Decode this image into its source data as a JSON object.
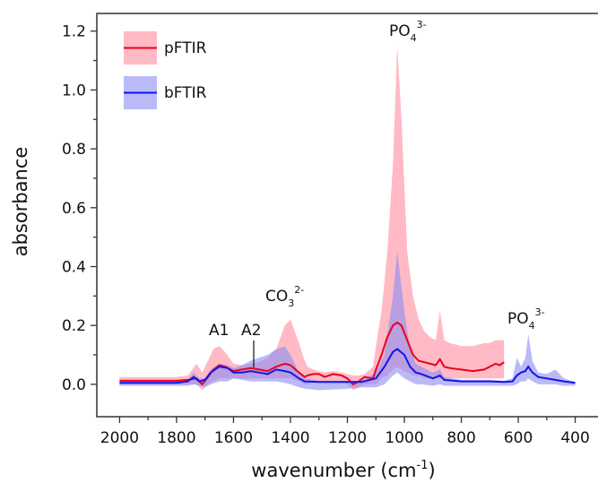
{
  "chart_data": {
    "type": "line",
    "y_label": "absorbance",
    "x_label_parts": [
      "wavenumber (cm",
      "-1",
      ")"
    ],
    "xlim": [
      2080,
      320
    ],
    "ylim": [
      -0.11,
      1.26
    ],
    "xticks": [
      2000,
      1800,
      1600,
      1400,
      1200,
      1000,
      800,
      600,
      400
    ],
    "x_minor_ticks": [
      1900,
      1700,
      1500,
      1300,
      1100,
      900,
      700,
      500
    ],
    "yticks": [
      {
        "value": 0,
        "label": "0.0"
      },
      0.2,
      0.4,
      0.6,
      0.8,
      {
        "value": 1,
        "label": "1.0"
      },
      1.2
    ],
    "y_minor_ticks": [
      0.1,
      0.3,
      0.5,
      0.7,
      0.9,
      1.1
    ],
    "legend": "upper left",
    "annotations": [
      {
        "text": "A1"
      },
      {
        "text": "A2"
      },
      {
        "text": "CO",
        "sub": "3",
        "sup": "2-"
      },
      {
        "text": "PO",
        "sub": "4",
        "sup": "3-"
      },
      {
        "text": "PO",
        "sub": "4",
        "sup": "3-"
      }
    ],
    "series": [
      {
        "name": "pFTIR",
        "color": "#e8001c",
        "band_color": "#ffb3bf",
        "x": [
          2000,
          1900,
          1800,
          1760,
          1730,
          1710,
          1690,
          1670,
          1650,
          1630,
          1600,
          1570,
          1540,
          1510,
          1480,
          1450,
          1420,
          1400,
          1370,
          1350,
          1340,
          1320,
          1300,
          1280,
          1250,
          1220,
          1200,
          1180,
          1160,
          1140,
          1110,
          1100,
          1080,
          1060,
          1040,
          1025,
          1010,
          990,
          970,
          950,
          930,
          910,
          890,
          875,
          860,
          840,
          800,
          760,
          720,
          700,
          680,
          665,
          650
        ],
        "values": [
          0.012,
          0.012,
          0.012,
          0.015,
          0.02,
          0.0,
          0.025,
          0.05,
          0.065,
          0.06,
          0.045,
          0.05,
          0.055,
          0.05,
          0.045,
          0.06,
          0.07,
          0.065,
          0.04,
          0.025,
          0.03,
          0.035,
          0.035,
          0.025,
          0.035,
          0.03,
          0.02,
          0.0,
          0.01,
          0.025,
          0.02,
          0.05,
          0.1,
          0.16,
          0.2,
          0.21,
          0.2,
          0.15,
          0.1,
          0.08,
          0.075,
          0.07,
          0.065,
          0.085,
          0.06,
          0.055,
          0.05,
          0.045,
          0.05,
          0.06,
          0.07,
          0.065,
          0.075
        ],
        "upper": [
          0.025,
          0.025,
          0.025,
          0.03,
          0.07,
          0.04,
          0.08,
          0.12,
          0.13,
          0.11,
          0.07,
          0.065,
          0.07,
          0.075,
          0.09,
          0.12,
          0.2,
          0.22,
          0.14,
          0.08,
          0.06,
          0.05,
          0.045,
          0.04,
          0.045,
          0.04,
          0.035,
          0.03,
          0.03,
          0.035,
          0.06,
          0.13,
          0.25,
          0.45,
          0.75,
          1.15,
          0.9,
          0.45,
          0.3,
          0.22,
          0.18,
          0.16,
          0.15,
          0.25,
          0.15,
          0.14,
          0.13,
          0.13,
          0.14,
          0.14,
          0.15,
          0.15,
          0.15
        ],
        "lower": [
          0.0,
          0.0,
          0.0,
          0.0,
          0.0,
          -0.02,
          0.0,
          0.01,
          0.02,
          0.02,
          0.02,
          0.02,
          0.02,
          0.02,
          0.02,
          0.02,
          0.02,
          0.02,
          0.01,
          0.0,
          0.0,
          0.01,
          0.01,
          0.01,
          0.01,
          0.01,
          0.0,
          -0.02,
          -0.01,
          0.0,
          0.0,
          0.0,
          0.02,
          0.03,
          0.05,
          0.06,
          0.05,
          0.04,
          0.03,
          0.03,
          0.02,
          0.02,
          0.02,
          0.02,
          0.02,
          0.02,
          0.02,
          0.02,
          0.02,
          0.02,
          0.02,
          0.02,
          0.02
        ]
      },
      {
        "name": "bFTIR",
        "color": "#1414e6",
        "band_color": "#8c8cf5",
        "x": [
          2000,
          1900,
          1800,
          1760,
          1740,
          1720,
          1700,
          1680,
          1650,
          1620,
          1600,
          1570,
          1540,
          1510,
          1480,
          1450,
          1420,
          1400,
          1370,
          1350,
          1300,
          1200,
          1150,
          1100,
          1070,
          1040,
          1025,
          1000,
          980,
          960,
          940,
          900,
          875,
          860,
          800,
          700,
          650,
          620,
          605,
          590,
          575,
          565,
          550,
          530,
          500,
          470,
          440,
          400
        ],
        "values": [
          0.005,
          0.005,
          0.005,
          0.01,
          0.025,
          0.01,
          0.015,
          0.04,
          0.06,
          0.055,
          0.04,
          0.04,
          0.045,
          0.04,
          0.035,
          0.05,
          0.045,
          0.04,
          0.02,
          0.01,
          0.008,
          0.008,
          0.008,
          0.02,
          0.06,
          0.11,
          0.12,
          0.1,
          0.06,
          0.04,
          0.035,
          0.02,
          0.03,
          0.015,
          0.01,
          0.01,
          0.008,
          0.01,
          0.03,
          0.04,
          0.045,
          0.06,
          0.04,
          0.025,
          0.02,
          0.015,
          0.01,
          0.005
        ],
        "upper": [
          0.01,
          0.01,
          0.01,
          0.015,
          0.04,
          0.02,
          0.02,
          0.05,
          0.07,
          0.065,
          0.055,
          0.065,
          0.08,
          0.09,
          0.1,
          0.12,
          0.13,
          0.1,
          0.04,
          0.02,
          0.012,
          0.012,
          0.012,
          0.04,
          0.1,
          0.3,
          0.45,
          0.25,
          0.12,
          0.07,
          0.06,
          0.04,
          0.05,
          0.025,
          0.015,
          0.015,
          0.012,
          0.02,
          0.09,
          0.06,
          0.09,
          0.17,
          0.08,
          0.04,
          0.035,
          0.05,
          0.02,
          0.008
        ],
        "lower": [
          -0.005,
          -0.005,
          -0.005,
          -0.005,
          0.0,
          -0.005,
          -0.01,
          0.0,
          0.01,
          0.01,
          0.02,
          0.015,
          0.01,
          0.01,
          0.01,
          0.01,
          0.005,
          0.0,
          -0.01,
          -0.015,
          -0.02,
          -0.015,
          -0.01,
          -0.01,
          0.0,
          0.03,
          0.04,
          0.02,
          0.01,
          0.0,
          0.0,
          -0.005,
          0.0,
          -0.005,
          -0.005,
          -0.005,
          -0.005,
          -0.005,
          0.0,
          0.01,
          0.01,
          0.02,
          0.01,
          0.0,
          0.0,
          0.0,
          -0.005,
          -0.005
        ]
      }
    ]
  }
}
